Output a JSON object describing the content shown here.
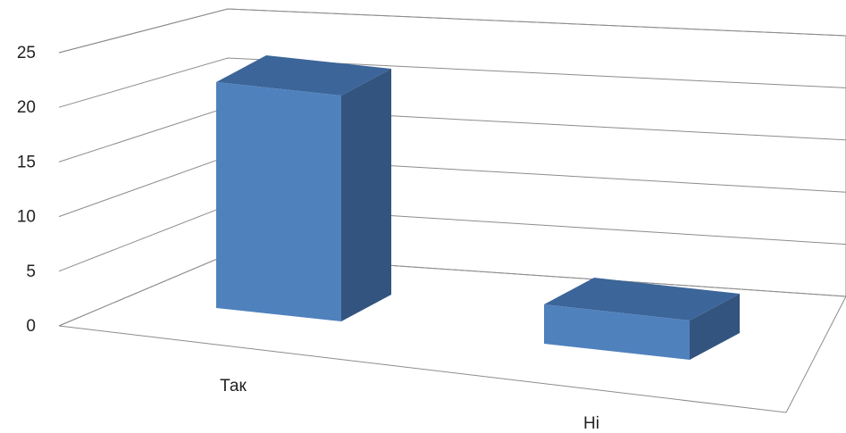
{
  "chart_data": {
    "type": "bar",
    "style": "3d-column",
    "categories": [
      "Так",
      "Ні"
    ],
    "values": [
      23,
      4
    ],
    "ylim": [
      0,
      25
    ],
    "yticks": [
      "0",
      "5",
      "10",
      "15",
      "20",
      "25"
    ],
    "grid": true,
    "legend": "none",
    "colors": {
      "front": "#4f81bd",
      "side": "#345480",
      "top": "#3c6599"
    }
  }
}
